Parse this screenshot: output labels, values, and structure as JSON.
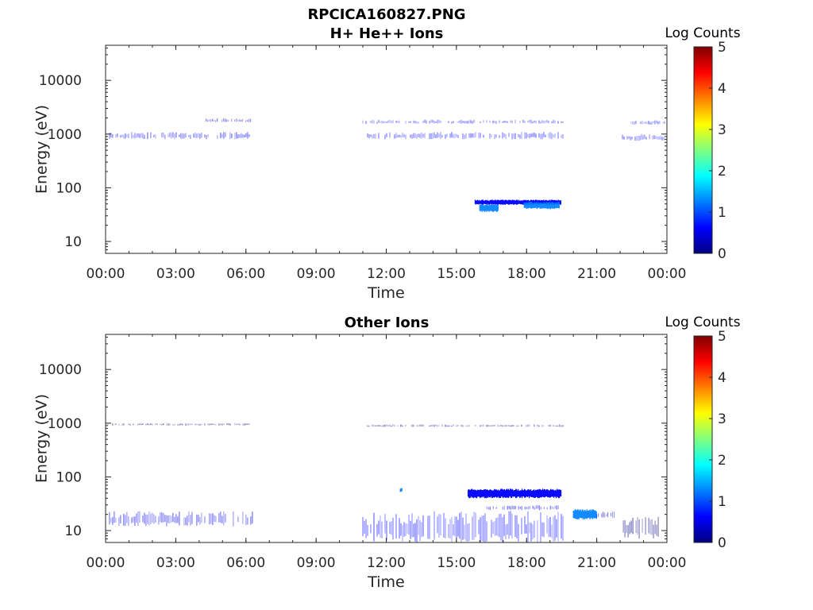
{
  "figure_title": "RPCICA160827.PNG",
  "colorscale": [
    "#000080",
    "#0000ff",
    "#0080ff",
    "#00ffff",
    "#80ff80",
    "#ffff00",
    "#ff8000",
    "#ff0000",
    "#800000"
  ],
  "chart_data": [
    {
      "type": "heatmap",
      "title": "H+ He++ Ions",
      "xlabel": "Time",
      "ylabel": "Energy (eV)",
      "x_ticks": [
        "00:00",
        "03:00",
        "06:00",
        "09:00",
        "12:00",
        "15:00",
        "18:00",
        "21:00",
        "00:00"
      ],
      "x_range_hours": [
        0,
        24
      ],
      "y_ticks": [
        10,
        100,
        1000,
        10000
      ],
      "y_range": [
        6,
        45000
      ],
      "y_scale": "log",
      "colorbar": {
        "label": "Log Counts",
        "range": [
          0,
          5
        ],
        "ticks": [
          0,
          1,
          2,
          3,
          4,
          5
        ]
      },
      "features": [
        {
          "t_start": 0.1,
          "t_end": 6.3,
          "e_low": 800,
          "e_high": 1100,
          "log_counts": 0.5
        },
        {
          "t_start": 4.3,
          "t_end": 6.3,
          "e_low": 1650,
          "e_high": 1950,
          "log_counts": 0.4
        },
        {
          "t_start": 11.0,
          "t_end": 19.6,
          "e_low": 800,
          "e_high": 1100,
          "log_counts": 0.5
        },
        {
          "t_start": 11.0,
          "t_end": 19.6,
          "e_low": 1550,
          "e_high": 1850,
          "log_counts": 0.35
        },
        {
          "t_start": 22.1,
          "t_end": 23.9,
          "e_low": 750,
          "e_high": 1000,
          "log_counts": 0.5
        },
        {
          "t_start": 22.4,
          "t_end": 23.9,
          "e_low": 1500,
          "e_high": 1800,
          "log_counts": 0.35
        },
        {
          "t_start": 15.8,
          "t_end": 19.5,
          "e_low": 48,
          "e_high": 60,
          "log_counts": 0.9
        },
        {
          "t_start": 16.0,
          "t_end": 16.8,
          "e_low": 35,
          "e_high": 50,
          "log_counts": 1.1
        },
        {
          "t_start": 17.9,
          "t_end": 19.4,
          "e_low": 40,
          "e_high": 55,
          "log_counts": 1.0
        }
      ]
    },
    {
      "type": "heatmap",
      "title": "Other Ions",
      "xlabel": "Time",
      "ylabel": "Energy (eV)",
      "x_ticks": [
        "00:00",
        "03:00",
        "06:00",
        "09:00",
        "12:00",
        "15:00",
        "18:00",
        "21:00",
        "00:00"
      ],
      "x_range_hours": [
        0,
        24
      ],
      "y_ticks": [
        10,
        100,
        1000,
        10000
      ],
      "y_range": [
        6,
        45000
      ],
      "y_scale": "log",
      "colorbar": {
        "label": "Log Counts",
        "range": [
          0,
          5
        ],
        "ticks": [
          0,
          1,
          2,
          3,
          4,
          5
        ]
      },
      "features": [
        {
          "t_start": 0.1,
          "t_end": 6.3,
          "e_low": 12,
          "e_high": 23,
          "log_counts": 0.6
        },
        {
          "t_start": 0.1,
          "t_end": 6.2,
          "e_low": 900,
          "e_high": 1000,
          "log_counts": 0.3
        },
        {
          "t_start": 11.0,
          "t_end": 19.6,
          "e_low": 6,
          "e_high": 23,
          "log_counts": 0.6
        },
        {
          "t_start": 11.2,
          "t_end": 19.6,
          "e_low": 850,
          "e_high": 950,
          "log_counts": 0.3
        },
        {
          "t_start": 12.6,
          "t_end": 12.7,
          "e_low": 52,
          "e_high": 62,
          "log_counts": 1.1
        },
        {
          "t_start": 15.5,
          "t_end": 19.5,
          "e_low": 40,
          "e_high": 60,
          "log_counts": 0.9
        },
        {
          "t_start": 16.3,
          "t_end": 19.4,
          "e_low": 24,
          "e_high": 30,
          "log_counts": 0.7
        },
        {
          "t_start": 20.0,
          "t_end": 21.0,
          "e_low": 16,
          "e_high": 25,
          "log_counts": 1.2
        },
        {
          "t_start": 21.0,
          "t_end": 21.8,
          "e_low": 17,
          "e_high": 23,
          "log_counts": 0.8
        },
        {
          "t_start": 22.0,
          "t_end": 23.9,
          "e_low": 7,
          "e_high": 18,
          "log_counts": 0.3
        }
      ]
    }
  ]
}
